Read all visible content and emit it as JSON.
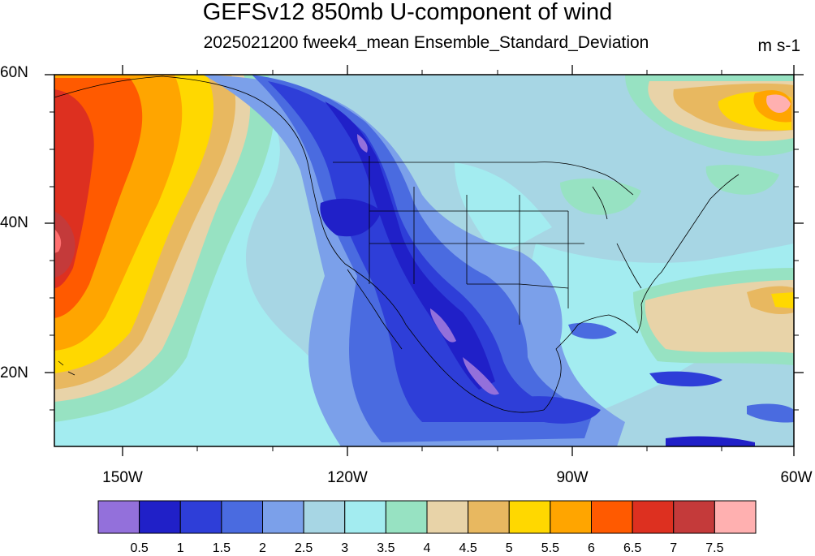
{
  "title": "GEFSv12 850mb U-component of wind",
  "subtitle": "2025021200 fweek4_mean Ensemble_Standard_Deviation",
  "units": "m s-1",
  "map": {
    "projection": "cylindrical equidistant",
    "lat_range": [
      10,
      60
    ],
    "lon_range": [
      -159,
      -60
    ],
    "lat_labels": [
      "60N",
      "40N",
      "20N"
    ],
    "lon_labels": [
      "150W",
      "120W",
      "90W",
      "60W"
    ],
    "grid": false
  },
  "colorbar": {
    "colors": [
      "#9370db",
      "#2020c8",
      "#2e3ed8",
      "#4a6be0",
      "#7ba0ea",
      "#a7d6e4",
      "#a3ecf0",
      "#97e2c2",
      "#e8d3a8",
      "#e8b860",
      "#ffd800",
      "#ffa500",
      "#ff5a00",
      "#dd3020",
      "#c43a3a",
      "#ffb0b0"
    ],
    "labels": [
      "0.5",
      "1",
      "1.5",
      "2",
      "2.5",
      "3",
      "3.5",
      "4",
      "4.5",
      "5",
      "5.5",
      "6",
      "6.5",
      "7",
      "7.5"
    ]
  }
}
